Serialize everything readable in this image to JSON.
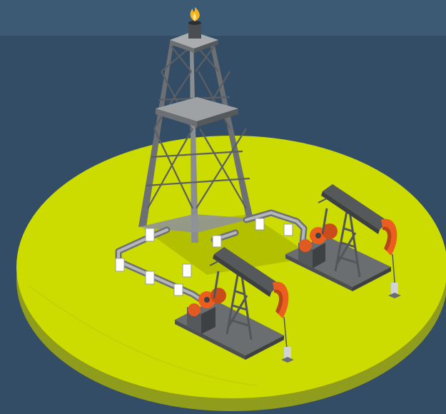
{
  "scene": {
    "subject": "oil-field-isometric",
    "elements": [
      "derrick-tower",
      "gas-flare",
      "pipeline",
      "pumpjack",
      "pumpjack"
    ],
    "colors": {
      "background": "#334d66",
      "top_band": "#3d5a74",
      "platform_top": "#ccdb00",
      "platform_side": "#8f9c1c",
      "steel": "#808487",
      "steel_dark": "#5b5f63",
      "pumpjack_head": "#ec5e20",
      "flame": "#f6b21b"
    }
  }
}
